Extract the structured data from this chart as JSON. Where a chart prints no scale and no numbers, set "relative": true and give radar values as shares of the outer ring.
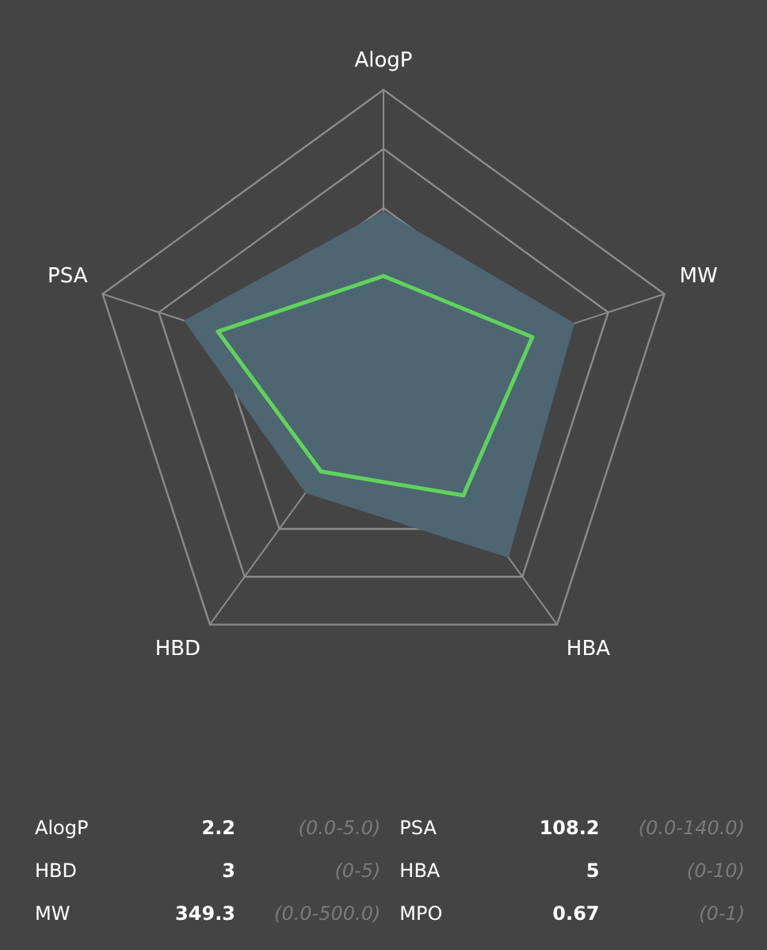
{
  "chart_data": {
    "type": "radar",
    "relative": true,
    "categories": [
      "AlogP",
      "MW",
      "HBA",
      "HBD",
      "PSA"
    ],
    "series": [
      {
        "color": "#4e6572",
        "values": [
          0.59,
          0.68,
          0.72,
          0.45,
          0.71
        ]
      },
      {
        "color": "#5fd35a",
        "values": [
          0.37,
          0.53,
          0.46,
          0.36,
          0.59
        ],
        "line_style": "solid"
      }
    ],
    "grid": true,
    "legend": false,
    "marker": "none",
    "annotations": [
      "AlogP",
      "2.2",
      "(0.0-5.0)",
      "PSA",
      "108.2",
      "(0.0-140.0)",
      "HBD",
      "3",
      "(0-5)",
      "HBA",
      "5",
      "(0-10)",
      "MW",
      "349.3",
      "(0.0-500.0)",
      "MPO",
      "0.67",
      "(0-1)"
    ]
  }
}
